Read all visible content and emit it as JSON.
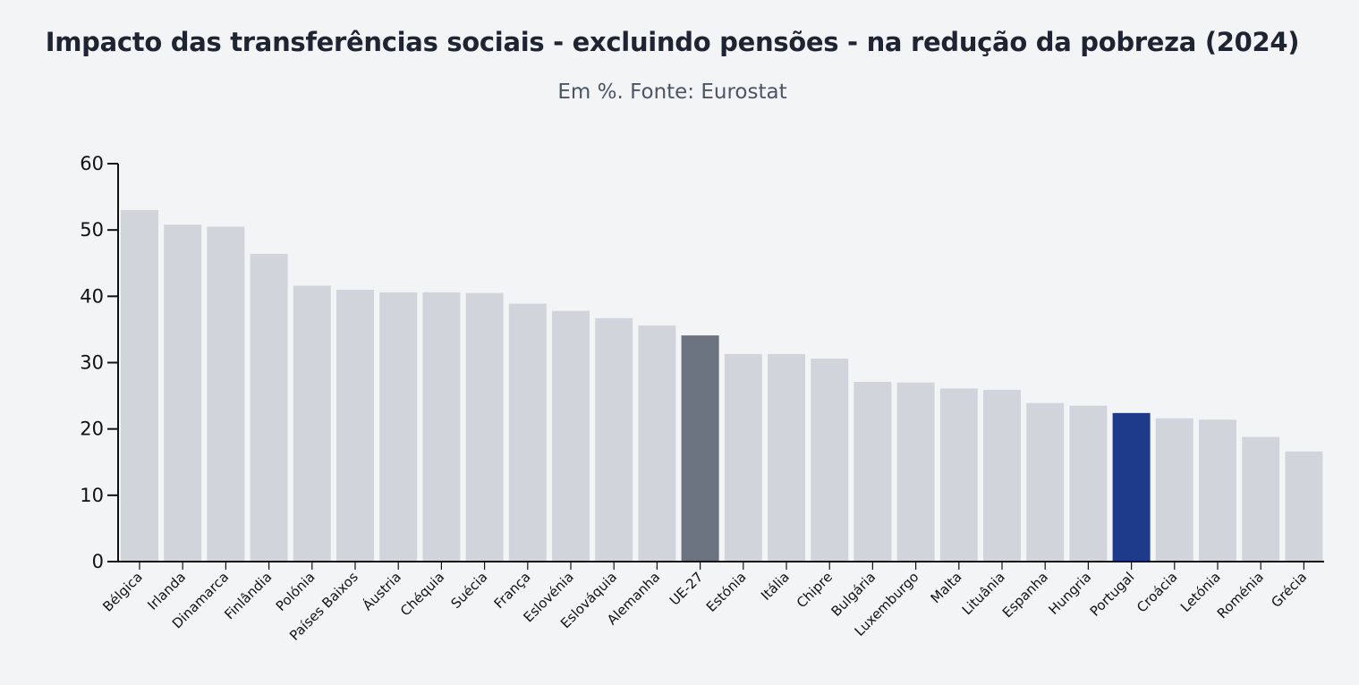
{
  "chart_data": {
    "type": "bar",
    "title": "Impacto das transferências sociais - excluindo pensões - na redução da pobreza (2024)",
    "subtitle": "Em %. Fonte: Eurostat",
    "xlabel": "",
    "ylabel": "",
    "ylim": [
      0,
      60
    ],
    "yticks": [
      0,
      10,
      20,
      30,
      40,
      50,
      60
    ],
    "grid": false,
    "categories": [
      "Bélgica",
      "Irlanda",
      "Dinamarca",
      "Finlândia",
      "Polónia",
      "Países Baixos",
      "Áustria",
      "Chéquia",
      "Suécia",
      "França",
      "Eslovénia",
      "Eslováquia",
      "Alemanha",
      "UE-27",
      "Estónia",
      "Itália",
      "Chipre",
      "Bulgária",
      "Luxemburgo",
      "Malta",
      "Lituânia",
      "Espanha",
      "Hungria",
      "Portugal",
      "Croácia",
      "Letónia",
      "Roménia",
      "Grécia"
    ],
    "values": [
      53.0,
      50.8,
      50.5,
      46.4,
      41.6,
      41.0,
      40.6,
      40.6,
      40.5,
      38.9,
      37.8,
      36.7,
      35.6,
      34.1,
      31.3,
      31.3,
      30.6,
      27.1,
      27.0,
      26.1,
      25.9,
      23.9,
      23.5,
      22.4,
      21.6,
      21.4,
      18.8,
      16.6
    ],
    "highlights": {
      "UE-27": "#6b7280",
      "Portugal": "#1e3a8a"
    }
  },
  "colors": {
    "default_bar": "#d1d5db",
    "eu_bar": "#6b7280",
    "portugal_bar": "#1e3a8a",
    "axis": "#111111",
    "background": "#f3f4f6"
  }
}
